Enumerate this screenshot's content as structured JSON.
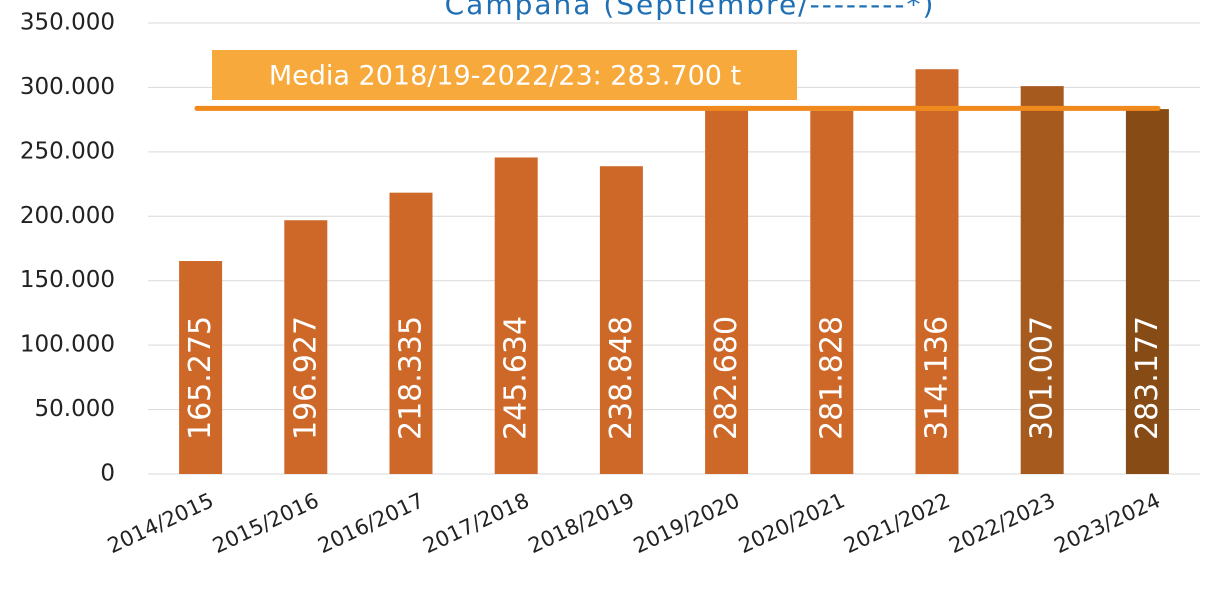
{
  "chart_data": {
    "type": "bar",
    "title": "Campaña (Septiembre/--------*)",
    "categories": [
      "2014/2015",
      "2015/2016",
      "2016/2017",
      "2017/2018",
      "2018/2019",
      "2019/2020",
      "2020/2021",
      "2021/2022",
      "2022/2023",
      "2023/2024"
    ],
    "values": [
      165275,
      196927,
      218335,
      245634,
      238848,
      282680,
      281828,
      314136,
      301007,
      283177
    ],
    "value_labels": [
      "165.275",
      "196.927",
      "218.335",
      "245.634",
      "238.848",
      "282.680",
      "281.828",
      "314.136",
      "301.007",
      "283.177"
    ],
    "colors": [
      "#cd6828",
      "#cd6828",
      "#cd6828",
      "#cd6828",
      "#cd6828",
      "#cd6828",
      "#cd6828",
      "#cd6828",
      "#a65a1e",
      "#874b16"
    ],
    "ylim": [
      0,
      350000
    ],
    "yticks": [
      0,
      {
        "value": 50000,
        "label": "50.000"
      },
      {
        "value": 100000,
        "label": "100.000"
      },
      {
        "value": 150000,
        "label": "150.000"
      },
      {
        "value": 200000,
        "label": "200.000"
      },
      {
        "value": 250000,
        "label": "250.000"
      },
      {
        "value": 300000,
        "label": "300.000"
      },
      {
        "value": 350000,
        "label": "350.000"
      }
    ],
    "grid": true,
    "mean": {
      "value": 283700,
      "label": "Media 2018/19-2022/23: 283.700 t",
      "color": "#f08a1c"
    }
  }
}
